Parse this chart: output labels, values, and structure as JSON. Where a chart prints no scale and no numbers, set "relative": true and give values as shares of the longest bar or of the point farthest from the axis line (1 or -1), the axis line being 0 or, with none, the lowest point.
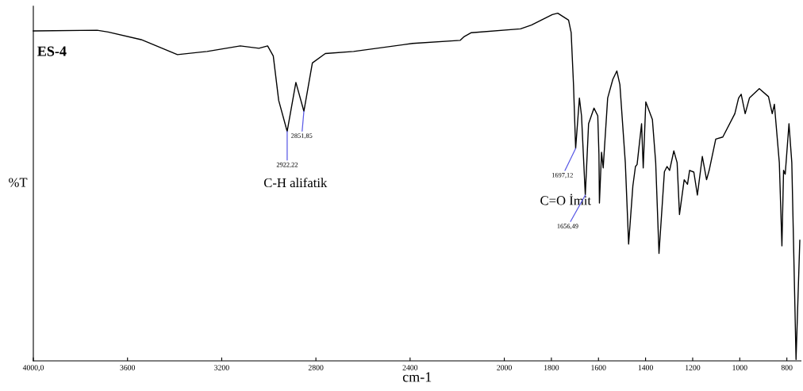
{
  "chart_data": {
    "type": "line",
    "relative": true,
    "xlabel": "cm-1",
    "ylabel": "%T",
    "xlim": [
      4000,
      740
    ],
    "xticks": [
      {
        "value": 4000,
        "label": "4000,0"
      },
      3600,
      3200,
      2800,
      2400,
      2000,
      1800,
      1600,
      1400,
      1200,
      1000,
      800
    ],
    "grid": false,
    "marker": "none",
    "line_style": "solid",
    "annotations": [
      "ES-4",
      "C-H alifatik",
      "C=O İmit",
      {
        "text": "2922,22",
        "x": 2922,
        "y": 0.66
      },
      {
        "text": "2851,85",
        "x": 2851,
        "y": 0.718
      },
      {
        "text": "1697,12",
        "x": 1697,
        "y": 0.611
      },
      {
        "text": "1656,49",
        "x": 1656,
        "y": 0.477
      }
    ],
    "series": [
      {
        "color": "#000000",
        "x": [
          4000,
          3729,
          3682,
          3542,
          3388,
          3262,
          3121,
          3042,
          3005,
          2981,
          2958,
          2922,
          2885,
          2851,
          2815,
          2760,
          2640,
          2390,
          2187,
          2170,
          2140,
          1931,
          1885,
          1796,
          1773,
          1727,
          1716,
          1706,
          1697,
          1681,
          1672,
          1656,
          1642,
          1619,
          1603,
          1598,
          1596,
          1587,
          1580,
          1561,
          1539,
          1522,
          1509,
          1486,
          1472,
          1454,
          1443,
          1436,
          1417,
          1410,
          1399,
          1371,
          1357,
          1343,
          1320,
          1309,
          1298,
          1280,
          1266,
          1256,
          1236,
          1222,
          1213,
          1195,
          1180,
          1159,
          1141,
          1130,
          1102,
          1072,
          1021,
          1005,
          994,
          977,
          959,
          917,
          878,
          862,
          853,
          832,
          821,
          814,
          807,
          791,
          779,
          761,
          745
        ],
        "values": [
          0.949,
          0.951,
          0.946,
          0.924,
          0.881,
          0.89,
          0.906,
          0.899,
          0.906,
          0.877,
          0.749,
          0.66,
          0.801,
          0.718,
          0.857,
          0.884,
          0.89,
          0.913,
          0.922,
          0.933,
          0.944,
          0.955,
          0.966,
          0.996,
          1.0,
          0.98,
          0.944,
          0.794,
          0.611,
          0.756,
          0.705,
          0.477,
          0.682,
          0.727,
          0.705,
          0.593,
          0.454,
          0.6,
          0.555,
          0.756,
          0.81,
          0.834,
          0.794,
          0.57,
          0.336,
          0.503,
          0.559,
          0.565,
          0.682,
          0.555,
          0.745,
          0.694,
          0.57,
          0.309,
          0.544,
          0.559,
          0.548,
          0.604,
          0.57,
          0.421,
          0.521,
          0.508,
          0.548,
          0.543,
          0.477,
          0.588,
          0.521,
          0.548,
          0.638,
          0.644,
          0.711,
          0.756,
          0.767,
          0.711,
          0.756,
          0.783,
          0.76,
          0.711,
          0.738,
          0.57,
          0.331,
          0.548,
          0.537,
          0.682,
          0.57,
          0.004,
          0.347
        ]
      }
    ]
  }
}
